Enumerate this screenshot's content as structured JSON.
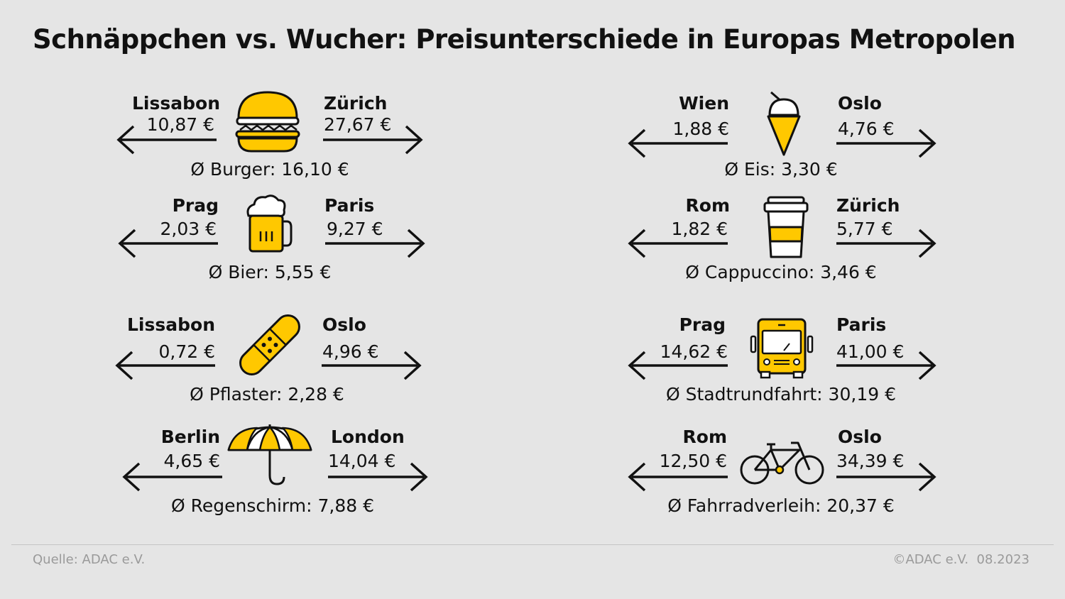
{
  "title": "Schnäppchen vs. Wucher: Preisunterschiede in Europas Metropolen",
  "colors": {
    "accent": "#ffc800",
    "background": "#e5e5e5",
    "text": "#111111",
    "muted": "#9a9a9a"
  },
  "items": [
    {
      "icon": "burger-icon",
      "cheap_city": "Lissabon",
      "cheap_price": "10,87 €",
      "expensive_city": "Zürich",
      "expensive_price": "27,67 €",
      "average": "Ø Burger: 16,10 €"
    },
    {
      "icon": "ice-cream-icon",
      "cheap_city": "Wien",
      "cheap_price": "1,88 €",
      "expensive_city": "Oslo",
      "expensive_price": "4,76 €",
      "average": "Ø Eis: 3,30 €"
    },
    {
      "icon": "beer-mug-icon",
      "cheap_city": "Prag",
      "cheap_price": "2,03 €",
      "expensive_city": "Paris",
      "expensive_price": "9,27 €",
      "average": "Ø Bier: 5,55 €"
    },
    {
      "icon": "coffee-cup-icon",
      "cheap_city": "Rom",
      "cheap_price": "1,82 €",
      "expensive_city": "Zürich",
      "expensive_price": "5,77 €",
      "average": "Ø Cappuccino: 3,46 €"
    },
    {
      "icon": "bandage-icon",
      "cheap_city": "Lissabon",
      "cheap_price": "0,72 €",
      "expensive_city": "Oslo",
      "expensive_price": "4,96 €",
      "average": "Ø Pflaster: 2,28 €"
    },
    {
      "icon": "bus-icon",
      "cheap_city": "Prag",
      "cheap_price": "14,62 €",
      "expensive_city": "Paris",
      "expensive_price": "41,00 €",
      "average": "Ø Stadtrundfahrt: 30,19 €"
    },
    {
      "icon": "umbrella-icon",
      "cheap_city": "Berlin",
      "cheap_price": "4,65 €",
      "expensive_city": "London",
      "expensive_price": "14,04 €",
      "average": "Ø Regenschirm: 7,88 €"
    },
    {
      "icon": "bicycle-icon",
      "cheap_city": "Rom",
      "cheap_price": "12,50 €",
      "expensive_city": "Oslo",
      "expensive_price": "34,39 €",
      "average": "Ø Fahrradverleih: 20,37 €"
    }
  ],
  "footer": {
    "source": "Quelle: ADAC e.V.",
    "copyright": "©ADAC e.V.  08.2023"
  }
}
